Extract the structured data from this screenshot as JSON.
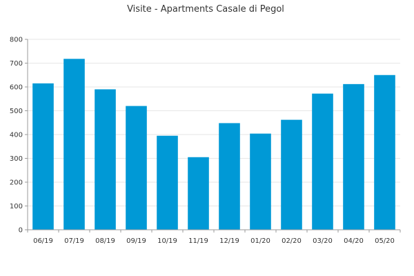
{
  "chart_data": {
    "type": "bar",
    "title": "Visite - Apartments Casale di Pegol",
    "categories": [
      "06/19",
      "07/19",
      "08/19",
      "09/19",
      "10/19",
      "11/19",
      "12/19",
      "01/20",
      "02/20",
      "03/20",
      "04/20",
      "05/20"
    ],
    "values": [
      615,
      718,
      590,
      520,
      395,
      305,
      448,
      404,
      462,
      572,
      612,
      650
    ],
    "ylim": [
      0,
      800
    ],
    "yticks": [
      0,
      100,
      200,
      300,
      400,
      500,
      600,
      700,
      800
    ],
    "grid": true,
    "legend": "none",
    "bar_color": "#0099d6",
    "grid_color": "#e6e6e6",
    "axis_color": "#999999"
  }
}
